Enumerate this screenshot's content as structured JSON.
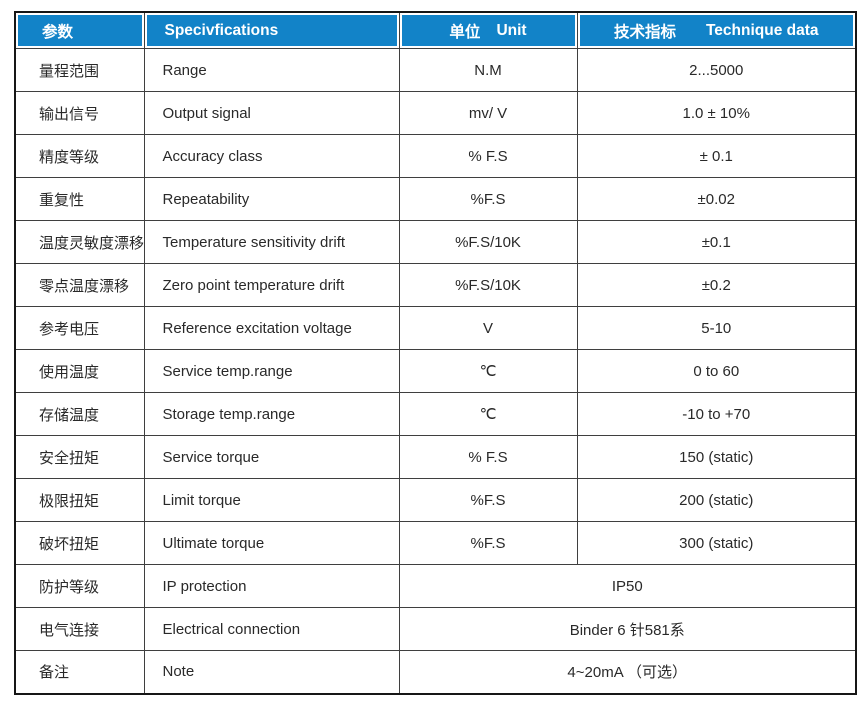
{
  "table": {
    "accent_color": "#1283C8",
    "grid_color": "#3f3f3f",
    "header": {
      "param_zh": "参数",
      "spec_en": "Specivfications",
      "unit_zh": "单位",
      "unit_en": "Unit",
      "tech_zh": "技术指标",
      "tech_en": "Technique data"
    },
    "rows": [
      {
        "zh": "量程范围",
        "en": "Range",
        "unit": "N.M",
        "value": "2...5000"
      },
      {
        "zh": "输出信号",
        "en": "Output signal",
        "unit": "mv/ V",
        "value": "1.0 ± 10%"
      },
      {
        "zh": "精度等级",
        "en": "Accuracy class",
        "unit": "% F.S",
        "value": "± 0.1"
      },
      {
        "zh": "重复性",
        "en": "Repeatability",
        "unit": "%F.S",
        "value": "±0.02"
      },
      {
        "zh": "温度灵敏度漂移",
        "en": "Temperature sensitivity drift",
        "unit": "%F.S/10K",
        "value": "±0.1"
      },
      {
        "zh": "零点温度漂移",
        "en": "Zero point temperature drift",
        "unit": "%F.S/10K",
        "value": "±0.2"
      },
      {
        "zh": "参考电压",
        "en": "Reference excitation voltage",
        "unit": "V",
        "value": "5-10"
      },
      {
        "zh": "使用温度",
        "en": "Service temp.range",
        "unit": "℃",
        "value": "0 to 60"
      },
      {
        "zh": "存储温度",
        "en": "Storage temp.range",
        "unit": "℃",
        "value": "-10 to +70"
      },
      {
        "zh": "安全扭矩",
        "en": "Service torque",
        "unit": "% F.S",
        "value": "150 (static)"
      },
      {
        "zh": "极限扭矩",
        "en": "Limit torque",
        "unit": "%F.S",
        "value": "200 (static)"
      },
      {
        "zh": "破坏扭矩",
        "en": "Ultimate torque",
        "unit": "%F.S",
        "value": "300 (static)"
      },
      {
        "zh": "防护等级",
        "en": "IP protection",
        "value": "IP50",
        "span": true
      },
      {
        "zh": "电气连接",
        "en": "Electrical connection",
        "value": "Binder 6 针581系",
        "span": true
      },
      {
        "zh": "备注",
        "en": "Note",
        "value": "4~20mA （可选）",
        "span": true
      }
    ]
  }
}
